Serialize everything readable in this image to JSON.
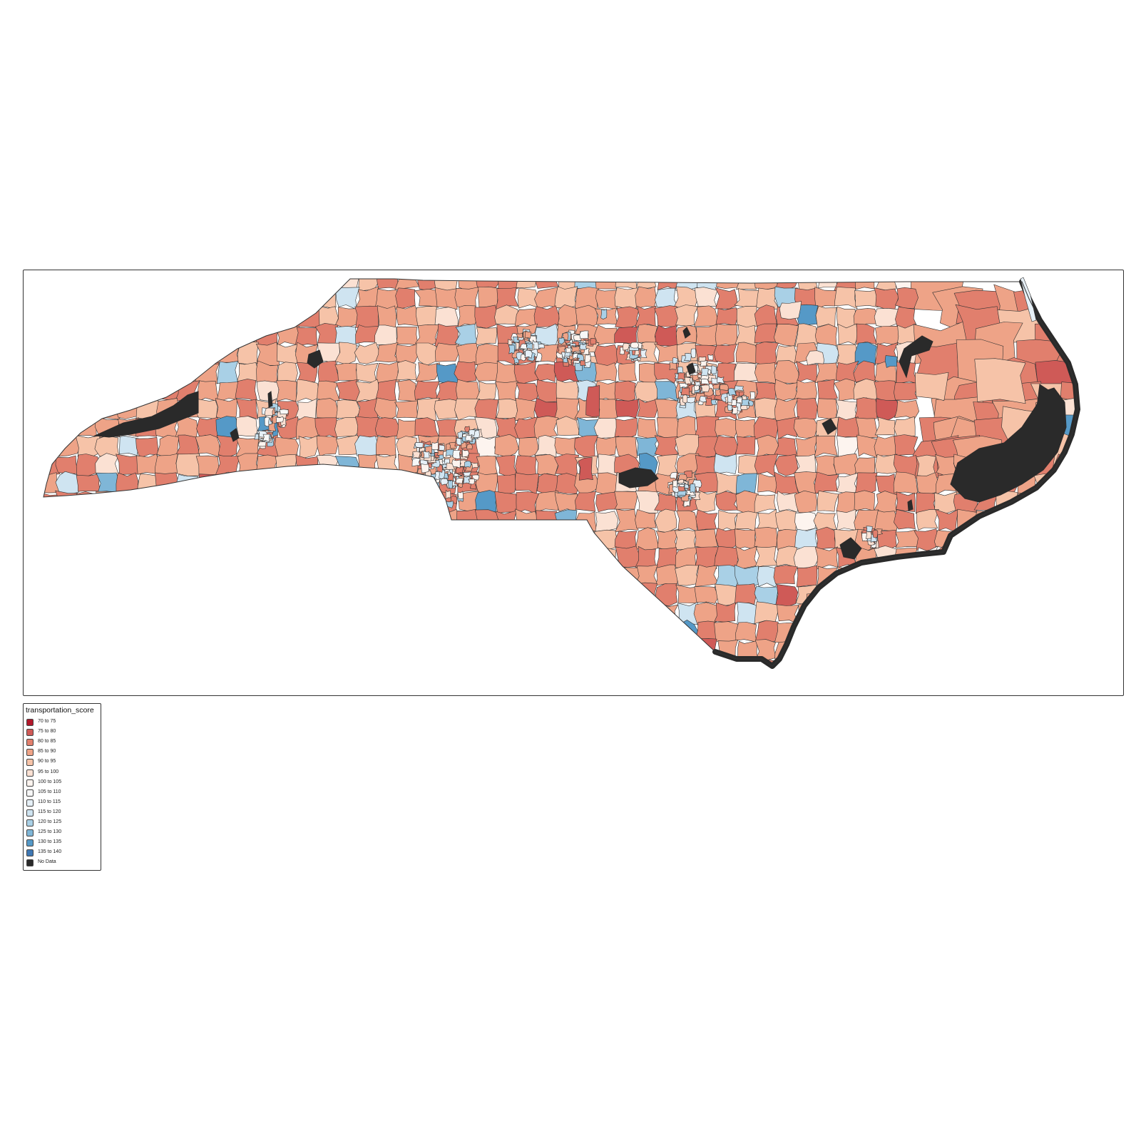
{
  "map": {
    "region": "North Carolina",
    "boundaries": "census tracts",
    "variable": "transportation_score",
    "description_colors": {
      "tract_border": "#333333",
      "no_data": "#2a2a2a"
    }
  },
  "legend": {
    "title": "transportation_score",
    "items": [
      {
        "label": "70 to 75",
        "color": "#b2182b"
      },
      {
        "label": "75 to 80",
        "color": "#cf5a57"
      },
      {
        "label": "80 to 85",
        "color": "#e17f6d"
      },
      {
        "label": "85 to 90",
        "color": "#eea387"
      },
      {
        "label": "90 to 95",
        "color": "#f6c3a8"
      },
      {
        "label": "95 to 100",
        "color": "#fbe1d3"
      },
      {
        "label": "100 to 105",
        "color": "#fdf4ef"
      },
      {
        "label": "105 to 110",
        "color": "#f7f7f7"
      },
      {
        "label": "110 to 115",
        "color": "#e6f0f7"
      },
      {
        "label": "115 to 120",
        "color": "#cfe4f1"
      },
      {
        "label": "120 to 125",
        "color": "#a9d0e6"
      },
      {
        "label": "125 to 130",
        "color": "#7fb6d7"
      },
      {
        "label": "130 to 135",
        "color": "#5599c7"
      },
      {
        "label": "135 to 140",
        "color": "#3f78b4"
      },
      {
        "label": "No Data",
        "color": "#2a2a2a"
      }
    ]
  }
}
